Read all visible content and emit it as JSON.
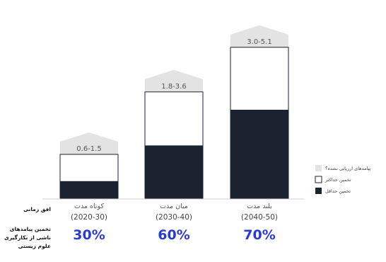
{
  "chart_data": {
    "type": "bar",
    "categories": [
      "کوتاه مدت",
      "میان مدت",
      "بلند مدت"
    ],
    "periods": [
      "(2020-30)",
      "(2030-40)",
      "(2040-50)"
    ],
    "series": [
      {
        "name": "تخمین حداقل",
        "values": [
          0.6,
          1.8,
          3.0
        ],
        "color": "#1b2230"
      },
      {
        "name": "تخمین حداکثر",
        "values": [
          1.5,
          3.6,
          5.1
        ],
        "color": "#ffffff"
      }
    ],
    "range_labels": [
      "0.6-1.5",
      "1.8-3.6",
      "3.0-5.1"
    ],
    "percentages": [
      "30%",
      "60%",
      "70%"
    ],
    "row_labels": {
      "horizon": "افق زمانی",
      "estimate": [
        "تخمین پیامدهای",
        "ناشی از بکارگیری",
        "علوم زیستی"
      ]
    },
    "legend": [
      "پیامدهای ارزیابی نشده؟",
      "تخمین حداکثر",
      "تخمین حداقل"
    ],
    "legend_placement": "right",
    "colors": {
      "min": "#1b2230",
      "max": "#ffffff",
      "unassessed": "#e3e3e3",
      "percent": "#2a3ad6"
    }
  }
}
